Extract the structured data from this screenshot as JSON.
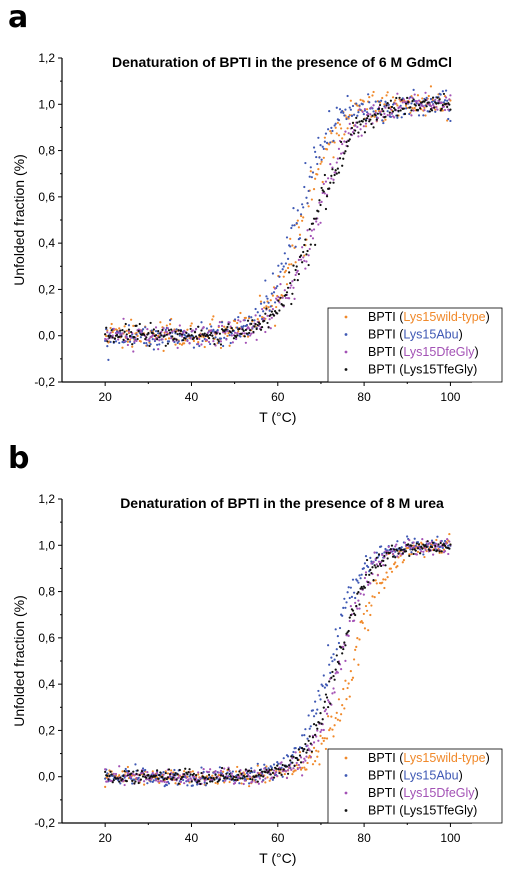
{
  "chart_data": [
    {
      "panel": "a",
      "type": "scatter",
      "title": "Denaturation of BPTI in the presence of 6 M GdmCl",
      "xlabel": "T (°C)",
      "ylabel": "Unfolded fraction (%)",
      "xlim": [
        10,
        105
      ],
      "ylim": [
        -0.2,
        1.2
      ],
      "xticks": [
        20,
        40,
        60,
        80,
        100
      ],
      "yticks": [
        "-0,2",
        "0,0",
        "0,2",
        "0,4",
        "0,6",
        "0,8",
        "1,0",
        "1,2"
      ],
      "yticks_values": [
        -0.2,
        0.0,
        0.2,
        0.4,
        0.6,
        0.8,
        1.0,
        1.2
      ],
      "legend_position": "bottom-right",
      "x_range": [
        20,
        100
      ],
      "series": [
        {
          "name_prefix": "BPTI (",
          "name_variant": "Lys15wild-type",
          "name_suffix": ")",
          "color": "#F0892B",
          "midpoint": 66.0,
          "width": 3.9,
          "baseline_noise": 0.03
        },
        {
          "name_prefix": "BPTI (",
          "name_variant": "Lys15Abu",
          "name_suffix": ")",
          "color": "#3F59B4",
          "midpoint": 64.5,
          "width": 3.7,
          "baseline_noise": 0.03
        },
        {
          "name_prefix": "BPTI (",
          "name_variant": "Lys15DfeGly",
          "name_suffix": ")",
          "color": "#A352B5",
          "midpoint": 68.5,
          "width": 4.3,
          "baseline_noise": 0.025
        },
        {
          "name_prefix": "BPTI (",
          "name_variant": "Lys15TfeGly",
          "name_suffix": ")",
          "color": "#111111",
          "midpoint": 69.0,
          "width": 4.5,
          "baseline_noise": 0.02
        }
      ]
    },
    {
      "panel": "b",
      "type": "scatter",
      "title": "Denaturation of BPTI in the presence of 8 M urea",
      "xlabel": "T (°C)",
      "ylabel": "Unfolded fraction (%)",
      "xlim": [
        10,
        105
      ],
      "ylim": [
        -0.2,
        1.2
      ],
      "xticks": [
        20,
        40,
        60,
        80,
        100
      ],
      "yticks": [
        "-0,2",
        "0,0",
        "0,2",
        "0,4",
        "0,6",
        "0,8",
        "1,0",
        "1,2"
      ],
      "yticks_values": [
        -0.2,
        0.0,
        0.2,
        0.4,
        0.6,
        0.8,
        1.0,
        1.2
      ],
      "legend_position": "bottom-right",
      "x_range": [
        20,
        100
      ],
      "series": [
        {
          "name_prefix": "BPTI (",
          "name_variant": "Lys15wild-type",
          "name_suffix": ")",
          "color": "#F0892B",
          "midpoint": 77.5,
          "width": 3.8,
          "baseline_noise": 0.018
        },
        {
          "name_prefix": "BPTI (",
          "name_variant": "Lys15Abu",
          "name_suffix": ")",
          "color": "#3F59B4",
          "midpoint": 72.0,
          "width": 3.6,
          "baseline_noise": 0.018
        },
        {
          "name_prefix": "BPTI (",
          "name_variant": "Lys15DfeGly",
          "name_suffix": ")",
          "color": "#A352B5",
          "midpoint": 74.5,
          "width": 3.6,
          "baseline_noise": 0.018
        },
        {
          "name_prefix": "BPTI (",
          "name_variant": "Lys15TfeGly",
          "name_suffix": ")",
          "color": "#111111",
          "midpoint": 74.0,
          "width": 3.8,
          "baseline_noise": 0.015
        }
      ]
    }
  ],
  "panels": {
    "a": {
      "letter": "a"
    },
    "b": {
      "letter": "b"
    }
  }
}
